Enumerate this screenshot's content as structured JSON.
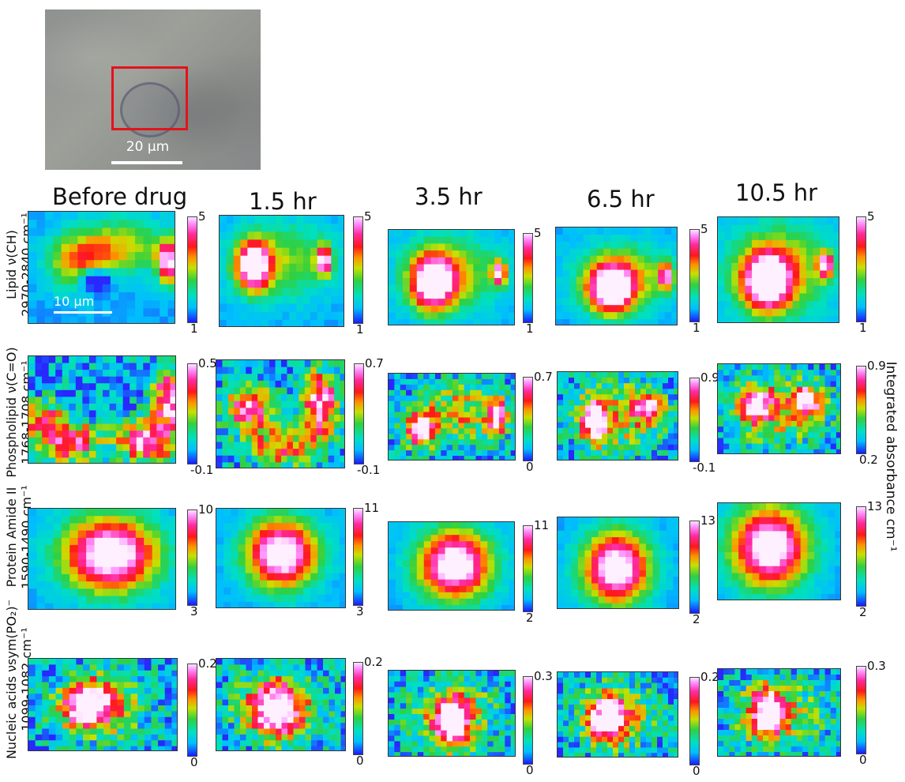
{
  "micro_image": {
    "scale_label": "20 µm"
  },
  "columns": [
    {
      "label": "Before drug"
    },
    {
      "label": "1.5 hr"
    },
    {
      "label": "3.5 hr"
    },
    {
      "label": "6.5 hr"
    },
    {
      "label": "10.5 hr"
    }
  ],
  "rows": [
    {
      "label_line1": "Lipid ν(CH)",
      "label_line2": "2970-2840 cm⁻¹"
    },
    {
      "label_line1": "Phospholipid ν(C=O)",
      "label_line2": "1768-1708 cm⁻¹"
    },
    {
      "label_line1": "Protein Amide II",
      "label_line2": "1590-1490 cm⁻¹"
    },
    {
      "label_line1": "Nucleic acids νsym(PO₂)⁻",
      "label_line2": "1099-1082 cm⁻¹"
    }
  ],
  "map_scale_label": "10 µm",
  "colorbar_ticks": [
    [
      {
        "max": "5",
        "min": "1"
      },
      {
        "max": "5",
        "min": "1"
      },
      {
        "max": "5",
        "min": "1"
      },
      {
        "max": "5",
        "min": "1"
      },
      {
        "max": "5",
        "min": "1"
      }
    ],
    [
      {
        "max": "0.5",
        "min": "-0.1"
      },
      {
        "max": "0.7",
        "min": "-0.1"
      },
      {
        "max": "0.7",
        "min": "0"
      },
      {
        "max": "0.9",
        "min": "-0.1"
      },
      {
        "max": "0.9",
        "min": "0.2"
      }
    ],
    [
      {
        "max": "10",
        "min": "3"
      },
      {
        "max": "11",
        "min": "3"
      },
      {
        "max": "11",
        "min": "2"
      },
      {
        "max": "13",
        "min": "2"
      },
      {
        "max": "13",
        "min": "2"
      }
    ],
    [
      {
        "max": "0.2",
        "min": "0"
      },
      {
        "max": "0.2",
        "min": "0"
      },
      {
        "max": "0.3",
        "min": "0"
      },
      {
        "max": "0.2",
        "min": "0"
      },
      {
        "max": "0.3",
        "min": "0"
      }
    ]
  ],
  "colorbar_title": "Integrated absorbance cm⁻¹"
}
